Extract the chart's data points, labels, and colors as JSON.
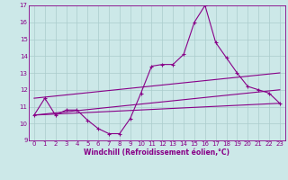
{
  "xlabel": "Windchill (Refroidissement éolien,°C)",
  "bg_color": "#cce8e8",
  "line_color": "#880088",
  "grid_color": "#aacccc",
  "spine_color": "#880088",
  "xlim": [
    -0.5,
    23.5
  ],
  "ylim": [
    9,
    17
  ],
  "xticks": [
    0,
    1,
    2,
    3,
    4,
    5,
    6,
    7,
    8,
    9,
    10,
    11,
    12,
    13,
    14,
    15,
    16,
    17,
    18,
    19,
    20,
    21,
    22,
    23
  ],
  "yticks": [
    9,
    10,
    11,
    12,
    13,
    14,
    15,
    16,
    17
  ],
  "line1_x": [
    0,
    1,
    2,
    3,
    4,
    5,
    6,
    7,
    8,
    9,
    10,
    11,
    12,
    13,
    14,
    15,
    16,
    17,
    18,
    19,
    20,
    21,
    22,
    23
  ],
  "line1_y": [
    10.5,
    11.5,
    10.5,
    10.8,
    10.8,
    10.2,
    9.7,
    9.4,
    9.4,
    10.3,
    11.8,
    13.4,
    13.5,
    13.5,
    14.1,
    16.0,
    17.0,
    14.8,
    13.9,
    13.0,
    12.2,
    12.0,
    11.8,
    11.2
  ],
  "line2_x": [
    0,
    23
  ],
  "line2_y": [
    10.5,
    11.2
  ],
  "line3_x": [
    0,
    23
  ],
  "line3_y": [
    10.5,
    12.0
  ],
  "line4_x": [
    0,
    23
  ],
  "line4_y": [
    11.5,
    13.0
  ],
  "tick_fontsize": 5.0,
  "xlabel_fontsize": 5.5
}
